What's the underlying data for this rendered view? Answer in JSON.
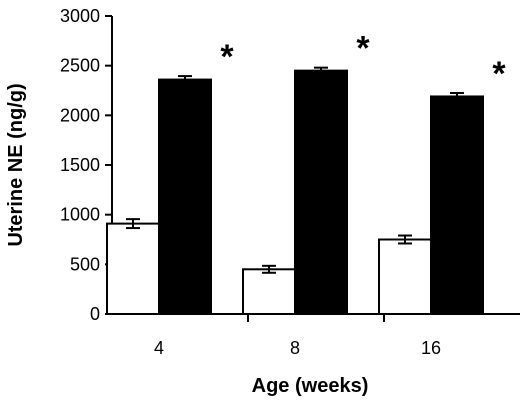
{
  "chart_data": {
    "type": "bar",
    "categories": [
      "4",
      "8",
      "16"
    ],
    "series": [
      {
        "values": [
          910,
          450,
          750
        ],
        "errors": [
          45,
          35,
          40
        ],
        "fill": "#ffffff"
      },
      {
        "values": [
          2360,
          2450,
          2190
        ],
        "errors": [
          35,
          30,
          35
        ],
        "fill": "#000000"
      }
    ],
    "xlabel": "Age (weeks)",
    "ylabel": "Uterine NE (ng/g)",
    "ylim": [
      0,
      3000
    ],
    "yticks": [
      "0",
      "500",
      "1000",
      "1500",
      "2000",
      "2500",
      "3000"
    ],
    "annotations": [
      "*",
      "*",
      "*"
    ],
    "grid": false,
    "legend": "none"
  }
}
